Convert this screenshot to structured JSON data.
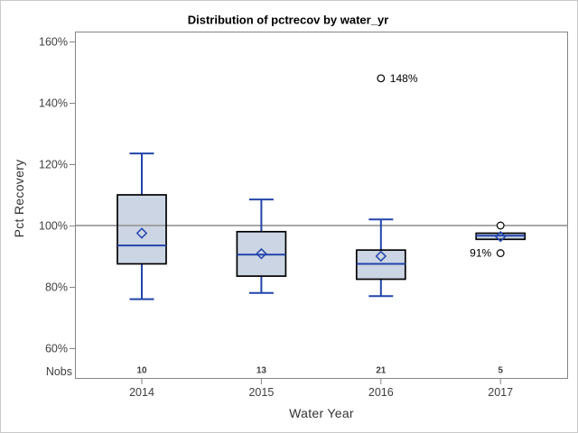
{
  "title": "Distribution of pctrecov by water_yr",
  "chart_data": {
    "type": "boxplot",
    "title": "Distribution of pctrecov by water_yr",
    "xlabel": "Water Year",
    "ylabel": "Pct Recovery",
    "y_tick_labels": [
      "160%",
      "140%",
      "120%",
      "100%",
      "80%",
      "60%"
    ],
    "y_tick_values": [
      160,
      140,
      120,
      100,
      80,
      60
    ],
    "ylim": [
      55,
      165
    ],
    "reference_line": 100,
    "grid": "off",
    "nobs_header": "Nobs",
    "categories": [
      "2014",
      "2015",
      "2016",
      "2017"
    ],
    "nobs": [
      "10",
      "13",
      "21",
      "5"
    ],
    "boxes": [
      {
        "category": "2014",
        "nobs": 10,
        "whisker_low": 76,
        "q1": 87.5,
        "median": 93.5,
        "mean": 97.5,
        "q3": 110,
        "whisker_high": 123.5,
        "outliers": []
      },
      {
        "category": "2015",
        "nobs": 13,
        "whisker_low": 78,
        "q1": 83.5,
        "median": 90.5,
        "mean": 90.8,
        "q3": 98,
        "whisker_high": 108.5,
        "outliers": []
      },
      {
        "category": "2016",
        "nobs": 21,
        "whisker_low": 77,
        "q1": 82.5,
        "median": 87.5,
        "mean": 90,
        "q3": 92,
        "whisker_high": 102,
        "outliers": [
          {
            "value": 148,
            "label": "148%",
            "side": "right"
          }
        ]
      },
      {
        "category": "2017",
        "nobs": 5,
        "whisker_low": 95.5,
        "q1": 95.5,
        "median": 96.7,
        "mean": 96.4,
        "q3": 97.5,
        "whisker_high": 97.5,
        "outliers": [
          {
            "value": 100,
            "label": "",
            "side": "right"
          },
          {
            "value": 91,
            "label": "91%",
            "side": "left"
          }
        ]
      }
    ]
  },
  "colors": {
    "blue": "#2244aa",
    "box_fill": "#ccd5e4",
    "box_stroke": "#000000",
    "reference_line": "#9b9b9b",
    "frame": "#868686",
    "outlier_stroke": "#111111",
    "page_border": "#c9c9c9",
    "background": "#ffffff"
  }
}
